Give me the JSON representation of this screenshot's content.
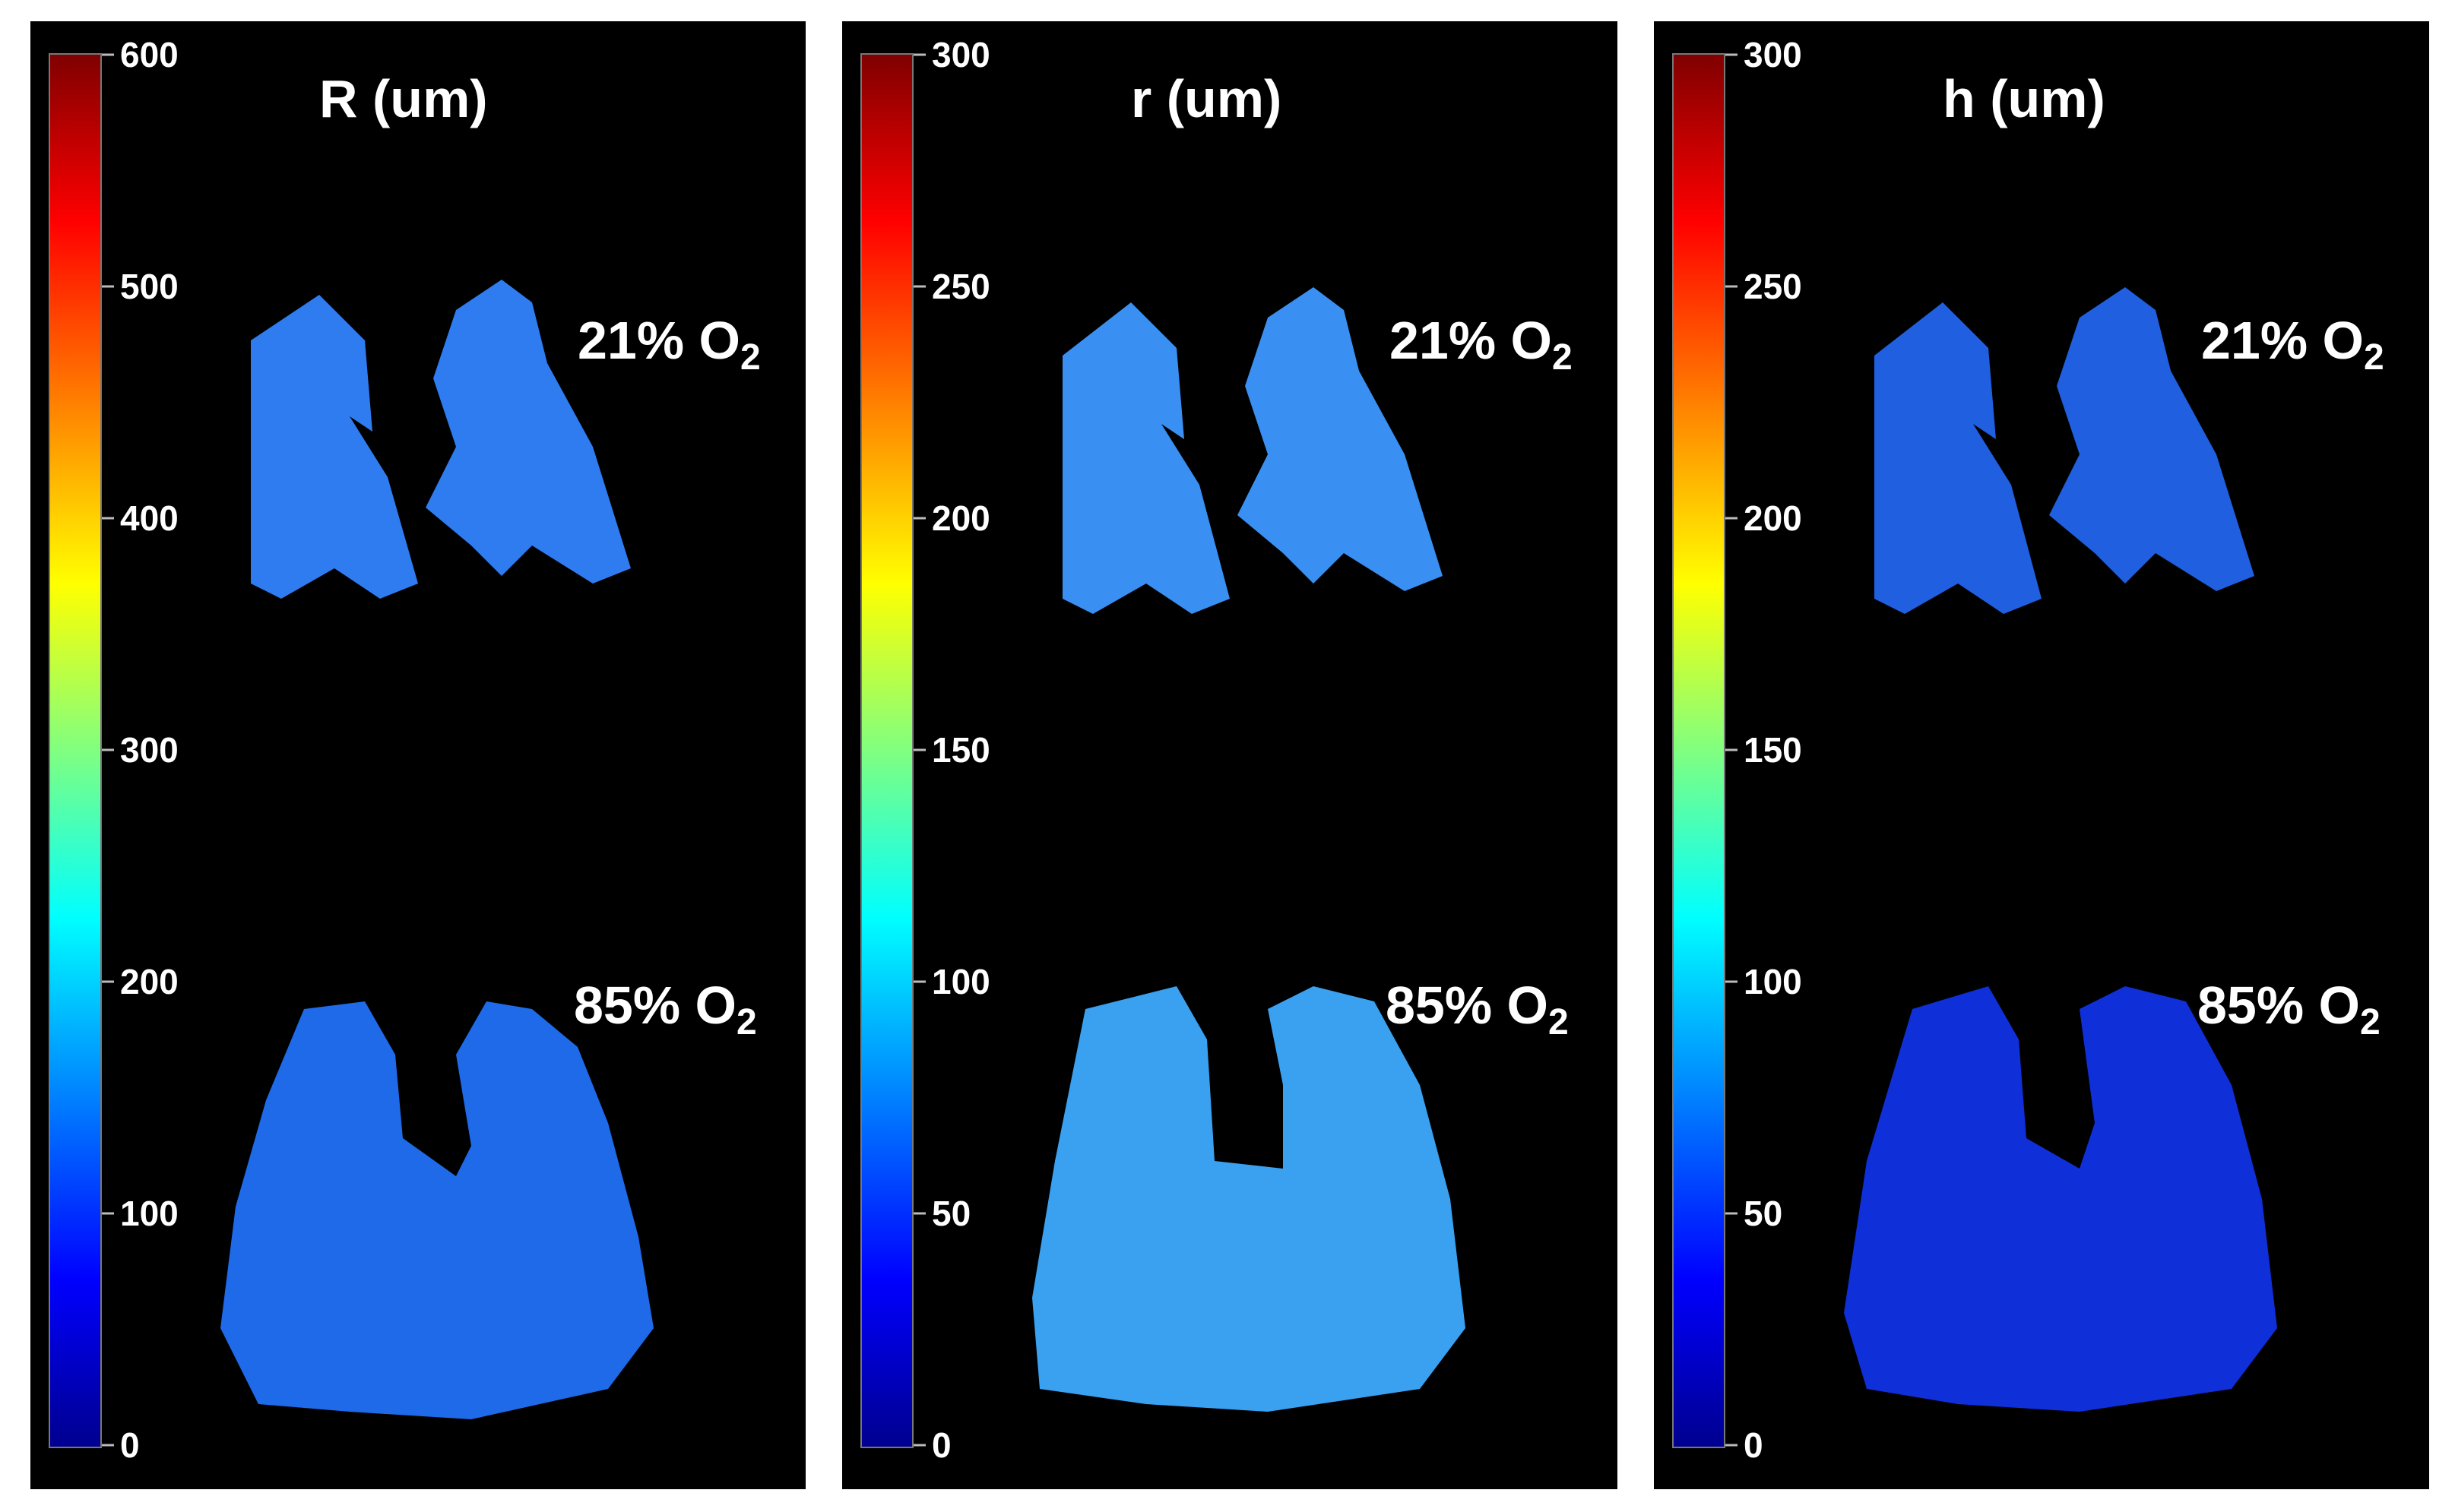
{
  "panels": [
    {
      "title": "R (um)",
      "ticks": [
        "600",
        "500",
        "400",
        "300",
        "200",
        "100",
        "0"
      ],
      "cond_top": {
        "pct": "21% O",
        "sub": "2"
      },
      "cond_bottom": {
        "pct": "85% O",
        "sub": "2"
      }
    },
    {
      "title": "r (um)",
      "ticks": [
        "300",
        "250",
        "200",
        "150",
        "100",
        "50",
        "0"
      ],
      "cond_top": {
        "pct": "21% O",
        "sub": "2"
      },
      "cond_bottom": {
        "pct": "85% O",
        "sub": "2"
      }
    },
    {
      "title": "h (um)",
      "ticks": [
        "300",
        "250",
        "200",
        "150",
        "100",
        "50",
        "0"
      ],
      "cond_top": {
        "pct": "21% O",
        "sub": "2"
      },
      "cond_bottom": {
        "pct": "85% O",
        "sub": "2"
      }
    }
  ],
  "colormap": [
    "#00008f",
    "#0000ff",
    "#0080ff",
    "#00ffff",
    "#80ff80",
    "#ffff00",
    "#ff8000",
    "#ff0000",
    "#800000"
  ],
  "panel_fills": {
    "top": [
      "#2f7cf0",
      "#3a8ff2",
      "#1f5fe0"
    ],
    "bottom": [
      "#1e6ae8",
      "#3aa0f0",
      "#0f2fd8"
    ]
  }
}
